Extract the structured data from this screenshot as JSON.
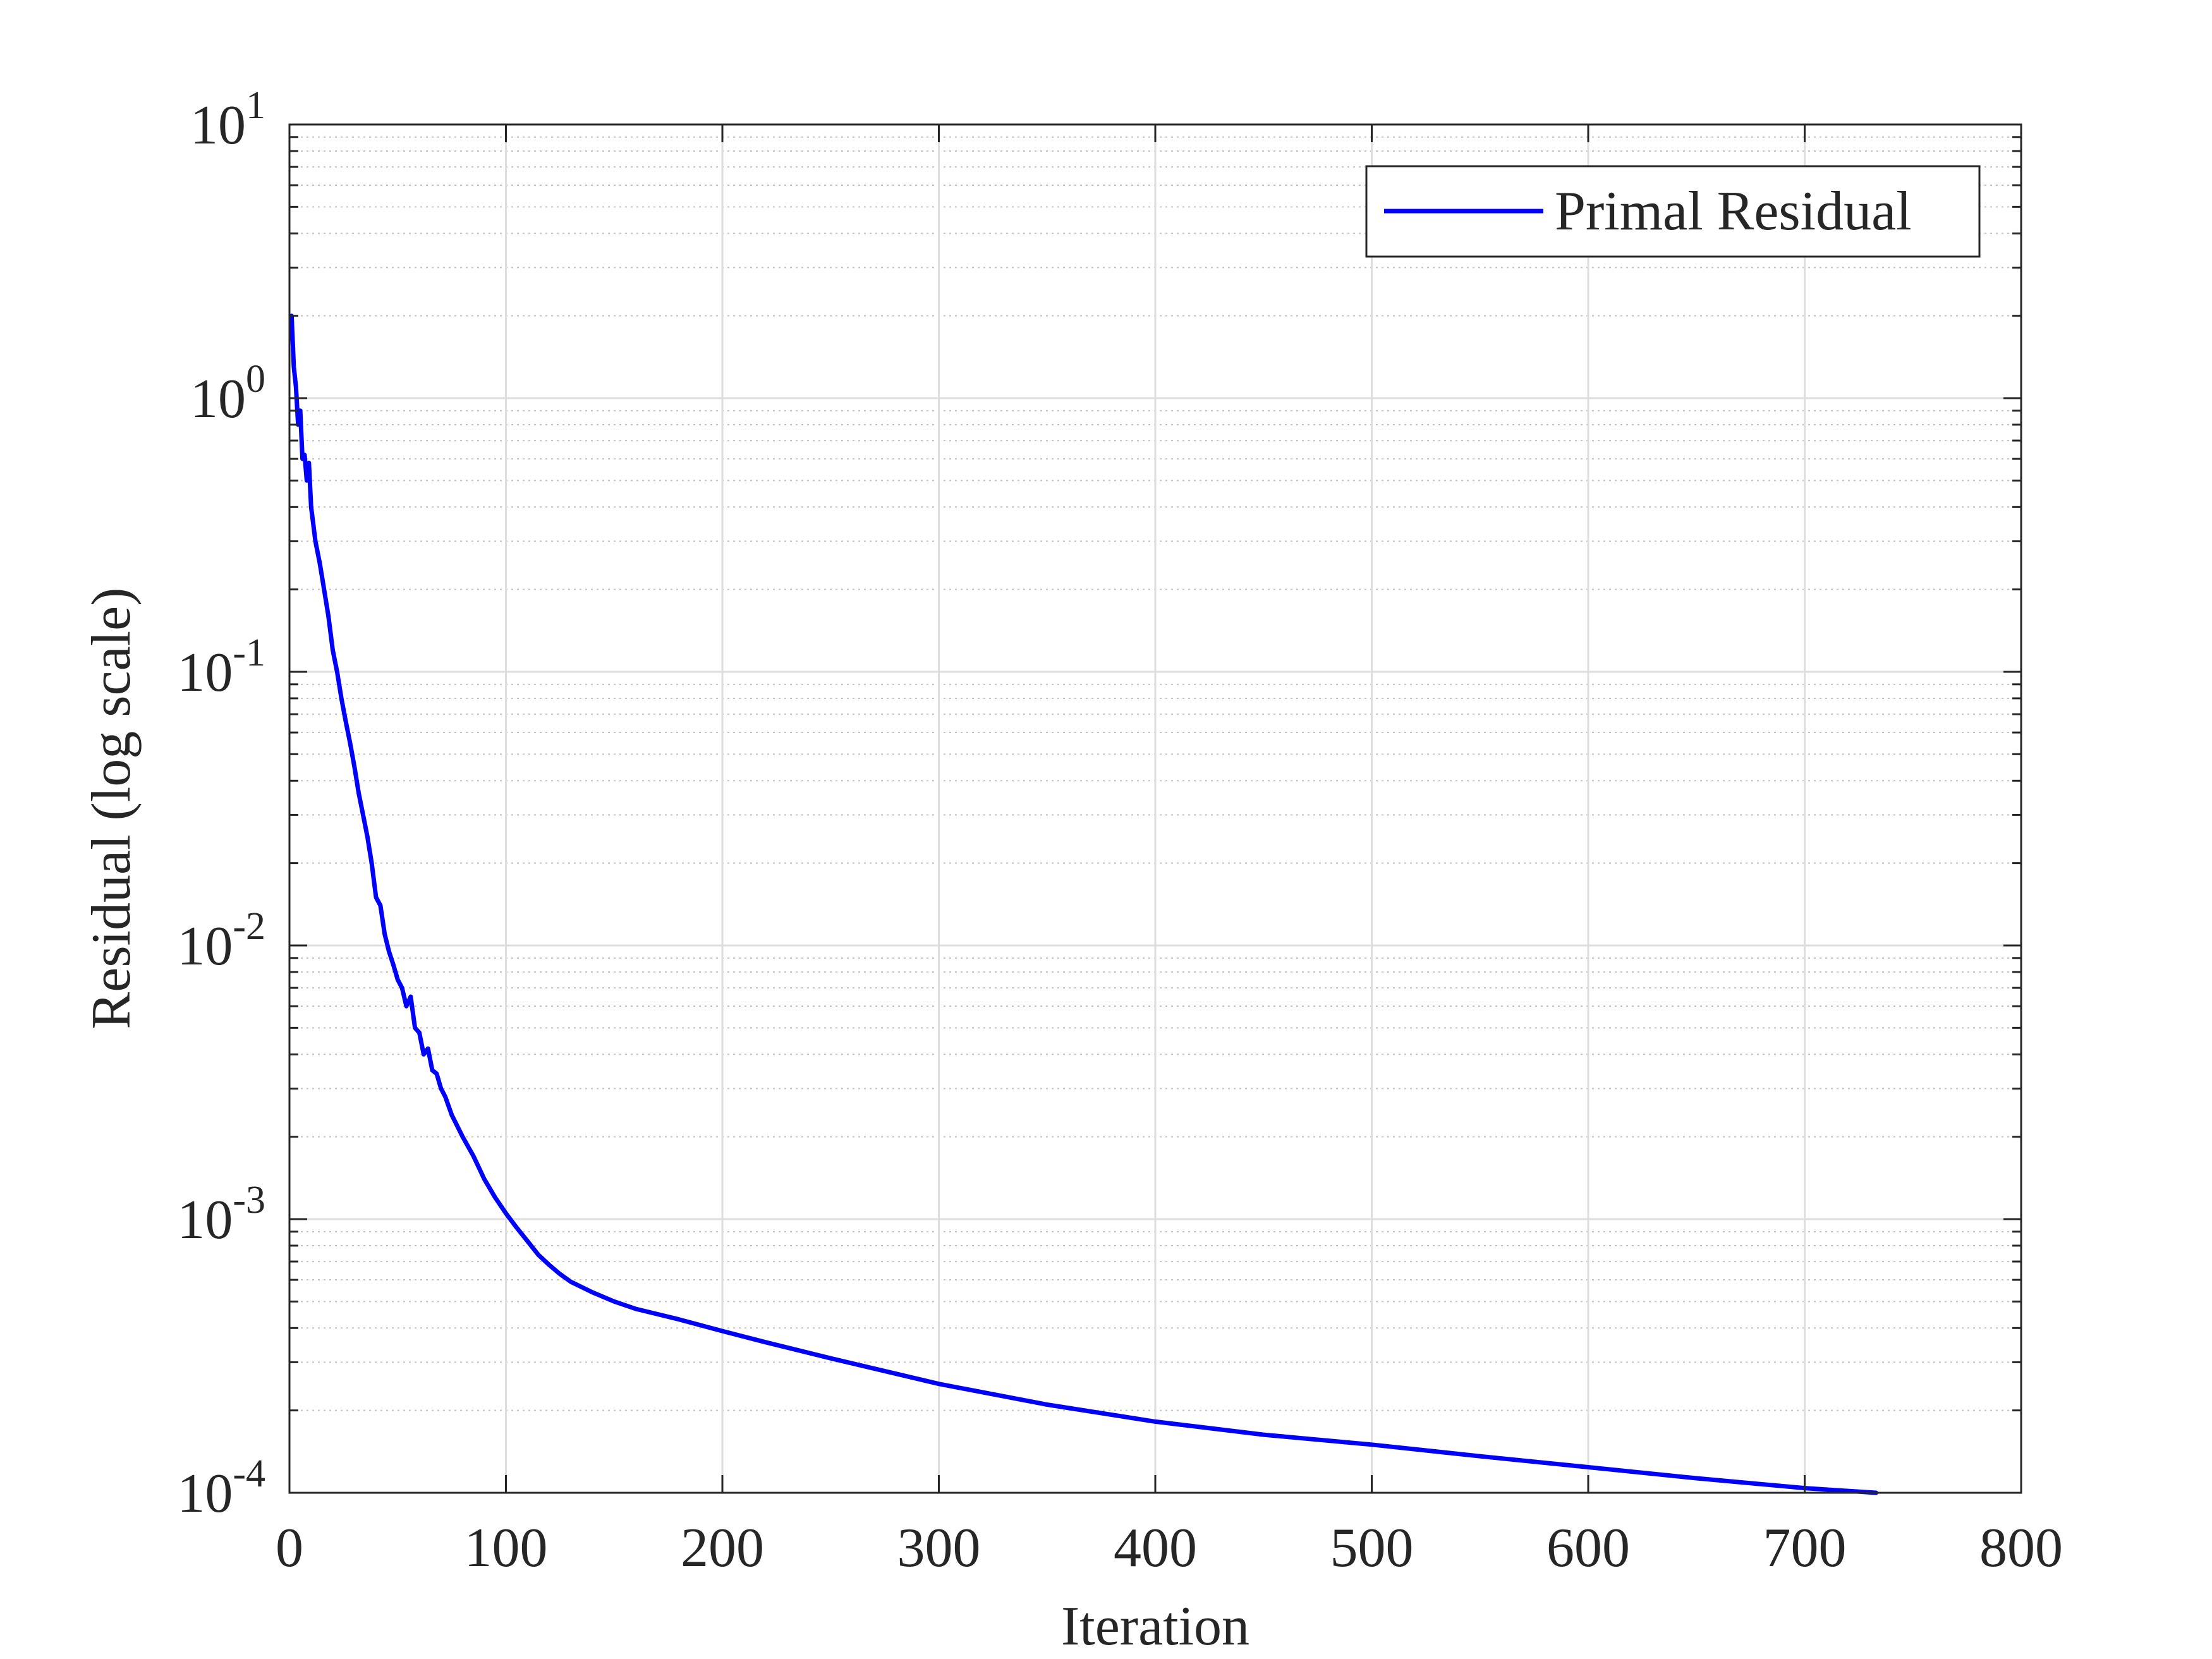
{
  "chart_data": {
    "type": "line",
    "title": "",
    "xlabel": "Iteration",
    "ylabel": "Residual (log scale)",
    "xlim": [
      0,
      800
    ],
    "ylim": [
      0.0001,
      10
    ],
    "yscale": "log",
    "grid": true,
    "minor_grid": true,
    "legend_position": "top-right",
    "x_ticks": [
      0,
      100,
      200,
      300,
      400,
      500,
      600,
      700,
      800
    ],
    "y_ticks": [
      {
        "value": 10,
        "base": "10",
        "exp": "1"
      },
      {
        "value": 1,
        "base": "10",
        "exp": "0"
      },
      {
        "value": 0.1,
        "base": "10",
        "exp": "-1"
      },
      {
        "value": 0.01,
        "base": "10",
        "exp": "-2"
      },
      {
        "value": 0.001,
        "base": "10",
        "exp": "-3"
      },
      {
        "value": 0.0001,
        "base": "10",
        "exp": "-4"
      }
    ],
    "series": [
      {
        "name": "Primal Residual",
        "color": "#0000ff",
        "x": [
          1,
          2,
          3,
          4,
          5,
          6,
          7,
          8,
          9,
          10,
          12,
          14,
          16,
          18,
          20,
          22,
          24,
          26,
          28,
          30,
          32,
          34,
          36,
          38,
          40,
          42,
          44,
          46,
          48,
          50,
          52,
          54,
          56,
          58,
          60,
          62,
          64,
          66,
          68,
          70,
          72,
          75,
          80,
          85,
          90,
          95,
          100,
          105,
          110,
          115,
          120,
          125,
          130,
          140,
          150,
          160,
          180,
          200,
          220,
          250,
          300,
          350,
          400,
          450,
          500,
          550,
          600,
          650,
          700,
          733
        ],
        "y": [
          2.0,
          1.3,
          1.1,
          0.8,
          0.9,
          0.6,
          0.62,
          0.5,
          0.58,
          0.4,
          0.3,
          0.25,
          0.2,
          0.16,
          0.12,
          0.1,
          0.08,
          0.066,
          0.055,
          0.045,
          0.036,
          0.03,
          0.025,
          0.02,
          0.015,
          0.014,
          0.011,
          0.0095,
          0.0085,
          0.0075,
          0.007,
          0.006,
          0.0065,
          0.005,
          0.0048,
          0.004,
          0.0042,
          0.0035,
          0.0034,
          0.003,
          0.0028,
          0.0024,
          0.002,
          0.0017,
          0.0014,
          0.0012,
          0.00105,
          0.00093,
          0.00083,
          0.00074,
          0.00068,
          0.00063,
          0.00059,
          0.00054,
          0.0005,
          0.00047,
          0.00043,
          0.00039,
          0.000355,
          0.00031,
          0.00025,
          0.00021,
          0.000182,
          0.000163,
          0.00015,
          0.000136,
          0.000124,
          0.000113,
          0.000104,
          0.0001
        ]
      }
    ]
  }
}
